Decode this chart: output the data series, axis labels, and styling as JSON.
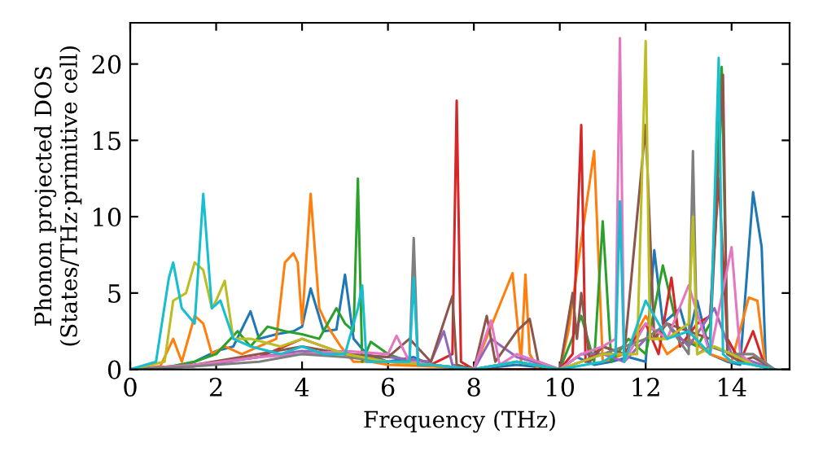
{
  "chart_data": {
    "type": "line",
    "xlabel": "Frequency (THz)",
    "ylabel": "Phonon projected DOS\n(States/THz·primitive cell)",
    "xlim": [
      0,
      15.35
    ],
    "ylim": [
      0,
      22.7
    ],
    "xticks": [
      0,
      2,
      4,
      6,
      8,
      10,
      12,
      14
    ],
    "yticks": [
      0,
      5,
      10,
      15,
      20
    ],
    "grid": false,
    "legend": false,
    "marker": "none",
    "line_style": "solid",
    "series": [
      {
        "color": "#1f77b4",
        "x": [
          0,
          0.8,
          1.5,
          2.0,
          2.4,
          2.8,
          3.0,
          3.4,
          3.8,
          4.0,
          4.2,
          4.5,
          4.8,
          5.0,
          5.2,
          5.5,
          6.0,
          6.6,
          7.0,
          8.0,
          9.0,
          10.0,
          10.4,
          10.8,
          11.2,
          11.6,
          12.0,
          12.2,
          12.4,
          12.8,
          13.0,
          13.2,
          13.5,
          13.9,
          14.2,
          14.5,
          14.7,
          14.8,
          15.0
        ],
        "values": [
          0,
          0.1,
          0.5,
          1.2,
          1.5,
          3.8,
          2.0,
          2.3,
          2.5,
          2.8,
          5.3,
          2.5,
          2.6,
          6.2,
          2.0,
          1.0,
          0.5,
          0.8,
          0.3,
          0,
          0.3,
          0,
          0.8,
          0.3,
          0.5,
          0.8,
          0.5,
          7.8,
          3.0,
          4.0,
          2.0,
          4.5,
          1.0,
          0.5,
          0.3,
          11.6,
          8.0,
          0,
          0
        ]
      },
      {
        "color": "#ff7f0e",
        "x": [
          0,
          0.7,
          1.0,
          1.2,
          1.5,
          1.7,
          1.9,
          2.2,
          2.6,
          3.0,
          3.4,
          3.6,
          3.8,
          3.9,
          4.0,
          4.2,
          4.4,
          4.6,
          4.9,
          5.2,
          5.6,
          6.0,
          7.0,
          8.0,
          8.9,
          9.1,
          9.2,
          9.3,
          9.5,
          10.0,
          10.2,
          10.8,
          11.0,
          11.5,
          12.0,
          12.5,
          13.0,
          13.5,
          14.0,
          14.4,
          14.6,
          14.8,
          15.0
        ],
        "values": [
          0,
          0.2,
          2.0,
          0.5,
          3.5,
          3.0,
          1.0,
          1.5,
          1.0,
          1.5,
          2.0,
          7.0,
          7.6,
          7.0,
          3.0,
          11.5,
          4.0,
          2.8,
          1.5,
          0.5,
          0.5,
          0.3,
          0.2,
          0,
          6.3,
          0.5,
          6.2,
          1.0,
          0,
          0,
          2.5,
          14.3,
          0.5,
          1.0,
          3.5,
          1.0,
          2.0,
          1.0,
          0.5,
          4.7,
          4.5,
          0,
          0
        ]
      },
      {
        "color": "#2ca02c",
        "x": [
          0,
          0.8,
          1.5,
          2.0,
          2.5,
          2.8,
          3.2,
          3.6,
          4.0,
          4.4,
          4.8,
          5.0,
          5.2,
          5.3,
          5.4,
          5.6,
          6.0,
          6.5,
          7.0,
          8.0,
          9.0,
          10.0,
          10.5,
          10.8,
          11.0,
          11.2,
          11.6,
          12.0,
          12.4,
          12.8,
          13.2,
          13.5,
          13.77,
          13.9,
          14.2,
          14.5,
          15.0
        ],
        "values": [
          0,
          0.1,
          0.5,
          1.0,
          2.5,
          1.5,
          2.8,
          2.5,
          2.3,
          2.0,
          4.0,
          3.0,
          2.5,
          12.5,
          0.5,
          1.8,
          1.0,
          0.5,
          0.3,
          0,
          0.5,
          0,
          3.5,
          0.5,
          9.7,
          0.5,
          2.0,
          1.0,
          6.8,
          2.0,
          1.5,
          3.0,
          19.8,
          2.0,
          0.5,
          0.3,
          0
        ]
      },
      {
        "color": "#d62728",
        "x": [
          0,
          1.5,
          3.0,
          4.0,
          5.0,
          6.0,
          7.0,
          7.5,
          7.6,
          7.7,
          8.0,
          9.0,
          10.0,
          10.3,
          10.5,
          10.6,
          11.0,
          11.5,
          12.0,
          12.3,
          12.6,
          12.8,
          13.2,
          13.5,
          13.7,
          13.9,
          14.2,
          14.5,
          14.8,
          15.0
        ],
        "values": [
          0,
          0.3,
          0.8,
          2.0,
          1.0,
          0.5,
          0.3,
          1.0,
          17.6,
          0.5,
          0,
          0,
          0,
          1.0,
          16.0,
          0.5,
          1.5,
          1.0,
          3.0,
          1.0,
          6.0,
          1.5,
          3.0,
          3.5,
          12.5,
          2.0,
          0.5,
          2.5,
          0,
          0
        ]
      },
      {
        "color": "#9467bd",
        "x": [
          0,
          1.5,
          3.0,
          4.0,
          5.0,
          6.0,
          7.0,
          7.3,
          7.5,
          8.0,
          8.4,
          9.0,
          10.0,
          10.5,
          11.0,
          11.5,
          12.0,
          12.5,
          13.0,
          13.6,
          14.0,
          14.5,
          15.0
        ],
        "values": [
          0,
          0.2,
          0.8,
          1.2,
          1.0,
          0.8,
          0.5,
          2.5,
          0.3,
          0,
          2.0,
          0.8,
          0,
          1.0,
          1.0,
          0.5,
          2.0,
          3.0,
          1.5,
          4.0,
          1.0,
          0.5,
          0
        ]
      },
      {
        "color": "#8c564b",
        "x": [
          0,
          1.5,
          3.0,
          4.0,
          5.0,
          6.0,
          6.5,
          7.0,
          7.5,
          7.6,
          8.0,
          8.3,
          8.5,
          9.0,
          9.3,
          9.5,
          10.0,
          10.3,
          10.4,
          10.5,
          10.7,
          11.0,
          11.5,
          12.0,
          12.2,
          12.5,
          13.0,
          13.5,
          13.8,
          13.9,
          14.2,
          14.5,
          15.0
        ],
        "values": [
          0,
          0.3,
          1.0,
          1.5,
          1.0,
          0.8,
          2.0,
          0.5,
          4.8,
          0.3,
          0,
          3.5,
          0.5,
          2.5,
          3.3,
          0.5,
          0,
          5.0,
          2.0,
          5.0,
          0.5,
          1.5,
          1.0,
          16.0,
          2.0,
          3.0,
          2.5,
          2.0,
          19.3,
          1.0,
          0.5,
          0.8,
          0
        ]
      },
      {
        "color": "#e377c2",
        "x": [
          0,
          1.5,
          3.0,
          4.0,
          5.0,
          6.0,
          6.2,
          6.5,
          7.0,
          8.0,
          8.4,
          8.6,
          9.0,
          10.0,
          10.5,
          11.0,
          11.3,
          11.4,
          11.5,
          12.0,
          12.5,
          13.0,
          13.5,
          14.0,
          14.2,
          14.5,
          15.0
        ],
        "values": [
          0,
          0.3,
          0.8,
          1.0,
          1.2,
          1.0,
          2.2,
          0.5,
          0.3,
          0,
          3.2,
          0.3,
          1.0,
          0,
          1.0,
          1.5,
          2.0,
          21.7,
          0.5,
          3.0,
          2.0,
          5.5,
          1.0,
          8.0,
          1.0,
          0.3,
          0
        ]
      },
      {
        "color": "#7f7f7f",
        "x": [
          0,
          1.5,
          3.0,
          4.0,
          5.0,
          6.0,
          6.5,
          6.6,
          6.7,
          7.0,
          8.0,
          9.0,
          10.0,
          11.0,
          12.0,
          12.5,
          13.0,
          13.1,
          13.2,
          13.5,
          14.0,
          14.5,
          15.0
        ],
        "values": [
          0,
          0.2,
          0.5,
          1.0,
          0.8,
          0.5,
          0.5,
          8.6,
          0.3,
          0.3,
          0,
          0.5,
          0,
          1.0,
          2.0,
          3.0,
          1.0,
          14.3,
          1.0,
          1.5,
          1.0,
          1.0,
          0
        ]
      },
      {
        "color": "#bcbd22",
        "x": [
          0,
          0.8,
          1.0,
          1.3,
          1.5,
          1.7,
          1.9,
          2.0,
          2.2,
          2.4,
          2.8,
          3.5,
          4.0,
          5.0,
          6.0,
          7.0,
          8.0,
          9.0,
          10.0,
          11.0,
          11.8,
          12.0,
          12.1,
          12.5,
          13.0,
          13.1,
          13.2,
          13.6,
          14.0,
          14.5,
          15.0
        ],
        "values": [
          0,
          0.5,
          4.5,
          5.0,
          7.0,
          6.5,
          4.0,
          4.5,
          5.8,
          2.0,
          2.0,
          1.5,
          2.0,
          1.0,
          0.5,
          0.3,
          0,
          0.5,
          0,
          1.0,
          1.0,
          21.5,
          2.0,
          2.0,
          3.0,
          10.0,
          1.0,
          1.5,
          1.0,
          0.3,
          0
        ]
      },
      {
        "color": "#17becf",
        "x": [
          0,
          0.6,
          0.9,
          1.0,
          1.2,
          1.5,
          1.7,
          1.9,
          2.1,
          2.4,
          2.8,
          3.5,
          4.0,
          4.5,
          5.0,
          5.3,
          5.4,
          5.5,
          6.0,
          6.5,
          6.6,
          6.7,
          7.0,
          8.0,
          9.0,
          10.0,
          11.0,
          11.3,
          11.4,
          11.5,
          12.0,
          12.5,
          13.0,
          13.5,
          13.7,
          13.8,
          14.0,
          14.5,
          15.0
        ],
        "values": [
          0,
          0.5,
          6.0,
          7.0,
          4.0,
          3.0,
          11.5,
          4.0,
          4.5,
          2.0,
          1.5,
          1.0,
          1.5,
          1.0,
          1.0,
          4.0,
          5.5,
          0.5,
          0.5,
          0.5,
          6.0,
          0.3,
          0.3,
          0,
          0.5,
          0,
          0.5,
          1.0,
          11.0,
          0.5,
          4.5,
          2.0,
          2.5,
          1.0,
          20.4,
          1.0,
          0.5,
          0.3,
          0
        ]
      }
    ]
  }
}
